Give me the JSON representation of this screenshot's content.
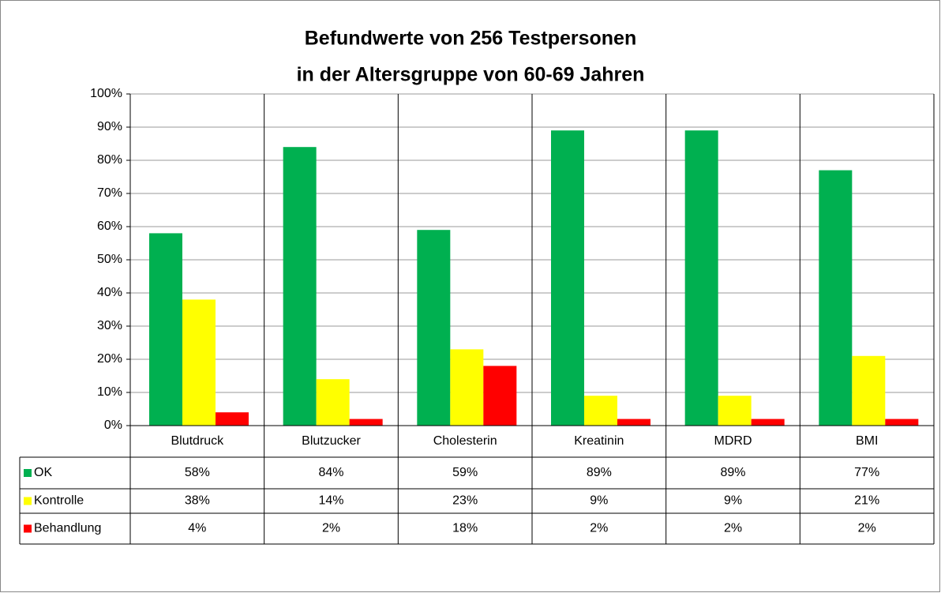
{
  "chart_data": {
    "type": "bar",
    "title": [
      "Befundwerte von 256 Testpersonen",
      "in der Altersgruppe von 60-69 Jahren"
    ],
    "categories": [
      "Blutdruck",
      "Blutzucker",
      "Cholesterin",
      "Kreatinin",
      "MDRD",
      "BMI"
    ],
    "series": [
      {
        "name": "OK",
        "color": "#00b050",
        "values": [
          58,
          84,
          59,
          89,
          89,
          77
        ],
        "value_labels": [
          "58%",
          "84%",
          "59%",
          "89%",
          "89%",
          "77%"
        ]
      },
      {
        "name": "Kontrolle",
        "color": "#ffff00",
        "values": [
          38,
          14,
          23,
          9,
          9,
          21
        ],
        "value_labels": [
          "38%",
          "14%",
          "23%",
          "9%",
          "9%",
          "21%"
        ]
      },
      {
        "name": "Behandlung",
        "color": "#ff0000",
        "values": [
          4,
          2,
          18,
          2,
          2,
          2
        ],
        "value_labels": [
          "4%",
          "2%",
          "18%",
          "2%",
          "2%",
          "2%"
        ]
      }
    ],
    "ylim": [
      0,
      100
    ],
    "yticks": [
      {
        "value": 0,
        "label": "0%"
      },
      {
        "value": 10,
        "label": "10%"
      },
      {
        "value": 20,
        "label": "20%"
      },
      {
        "value": 30,
        "label": "30%"
      },
      {
        "value": 40,
        "label": "40%"
      },
      {
        "value": 50,
        "label": "50%"
      },
      {
        "value": 60,
        "label": "60%"
      },
      {
        "value": 70,
        "label": "70%"
      },
      {
        "value": 80,
        "label": "80%"
      },
      {
        "value": 90,
        "label": "90%"
      },
      {
        "value": 100,
        "label": "100%"
      }
    ],
    "grid": true
  }
}
